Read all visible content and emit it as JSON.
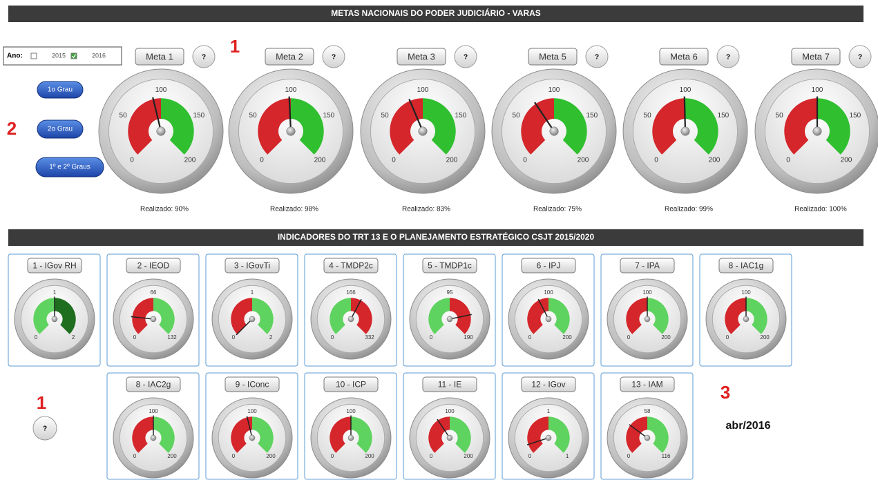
{
  "header": {
    "title": "METAS NACIONAIS DO PODER JUDICIÁRIO  - VARAS"
  },
  "section_2": {
    "title": "INDICADORES DO TRT 13 E O PLANEJAMENTO ESTRATÉGICO CSJT 2015/2020"
  },
  "year_filter": {
    "label": "Ano:",
    "options": [
      {
        "label": "2015",
        "checked": false
      },
      {
        "label": "2016",
        "checked": true
      }
    ]
  },
  "grade_buttons": [
    "1o Grau",
    "2o Grau",
    "1º e 2º Graus"
  ],
  "help_button": "?",
  "markers": {
    "one": "1",
    "two": "2",
    "three": "3"
  },
  "date": "abr/2016",
  "meta_gauges": [
    {
      "label": "Meta 1",
      "range": [
        0,
        200
      ],
      "ticks": [
        0,
        50,
        100,
        150,
        200
      ],
      "bands": [
        {
          "from": 0,
          "to": 100,
          "color": "#d4262b"
        },
        {
          "from": 100,
          "to": 200,
          "color": "#2fbf2f"
        }
      ],
      "realized": {
        "value": 90,
        "label": "Realizado: 90%"
      }
    },
    {
      "label": "Meta 2",
      "range": [
        0,
        200
      ],
      "ticks": [
        0,
        50,
        100,
        150,
        200
      ],
      "bands": [
        {
          "from": 0,
          "to": 100,
          "color": "#d4262b"
        },
        {
          "from": 100,
          "to": 200,
          "color": "#2fbf2f"
        }
      ],
      "realized": {
        "value": 98,
        "label": "Realizado: 98%"
      }
    },
    {
      "label": "Meta 3",
      "range": [
        0,
        200
      ],
      "ticks": [
        0,
        50,
        100,
        150,
        200
      ],
      "bands": [
        {
          "from": 0,
          "to": 100,
          "color": "#d4262b"
        },
        {
          "from": 100,
          "to": 200,
          "color": "#2fbf2f"
        }
      ],
      "realized": {
        "value": 83,
        "label": "Realizado: 83%"
      }
    },
    {
      "label": "Meta 5",
      "range": [
        0,
        200
      ],
      "ticks": [
        0,
        50,
        100,
        150,
        200
      ],
      "bands": [
        {
          "from": 0,
          "to": 100,
          "color": "#d4262b"
        },
        {
          "from": 100,
          "to": 200,
          "color": "#2fbf2f"
        }
      ],
      "realized": {
        "value": 75,
        "label": "Realizado: 75%"
      }
    },
    {
      "label": "Meta 6",
      "range": [
        0,
        200
      ],
      "ticks": [
        0,
        50,
        100,
        150,
        200
      ],
      "bands": [
        {
          "from": 0,
          "to": 100,
          "color": "#d4262b"
        },
        {
          "from": 100,
          "to": 200,
          "color": "#2fbf2f"
        }
      ],
      "realized": {
        "value": 99,
        "label": "Realizado: 99%"
      }
    },
    {
      "label": "Meta 7",
      "range": [
        0,
        200
      ],
      "ticks": [
        0,
        50,
        100,
        150,
        200
      ],
      "bands": [
        {
          "from": 0,
          "to": 100,
          "color": "#d4262b"
        },
        {
          "from": 100,
          "to": 200,
          "color": "#2fbf2f"
        }
      ],
      "realized": {
        "value": 100,
        "label": "Realizado: 100%"
      }
    }
  ],
  "indicators": [
    {
      "label": "1 - IGov RH",
      "range": [
        0,
        2
      ],
      "ticks": [
        0,
        1,
        2
      ],
      "bands": [
        {
          "from": 0,
          "to": 1,
          "color": "#5fd35f"
        },
        {
          "from": 1,
          "to": 2,
          "color": "#1f6e1f"
        }
      ],
      "value": 1
    },
    {
      "label": "2 - IEOD",
      "range": [
        0,
        132
      ],
      "ticks": [
        0,
        66,
        132
      ],
      "bands": [
        {
          "from": 0,
          "to": 66,
          "color": "#d4262b"
        },
        {
          "from": 66,
          "to": 132,
          "color": "#5fd35f"
        }
      ],
      "value": 25
    },
    {
      "label": "3 - IGovTi",
      "range": [
        0,
        2
      ],
      "ticks": [
        0,
        1,
        2
      ],
      "bands": [
        {
          "from": 0,
          "to": 1,
          "color": "#d4262b"
        },
        {
          "from": 1,
          "to": 2,
          "color": "#5fd35f"
        }
      ],
      "value": 0
    },
    {
      "label": "4 - TMDP2c",
      "range": [
        0,
        332
      ],
      "ticks": [
        0,
        166,
        332
      ],
      "bands": [
        {
          "from": 0,
          "to": 166,
          "color": "#5fd35f"
        },
        {
          "from": 166,
          "to": 332,
          "color": "#d4262b"
        }
      ],
      "value": 200
    },
    {
      "label": "5 - TMDP1c",
      "range": [
        0,
        190
      ],
      "ticks": [
        0,
        95,
        190
      ],
      "bands": [
        {
          "from": 0,
          "to": 95,
          "color": "#5fd35f"
        },
        {
          "from": 95,
          "to": 190,
          "color": "#d4262b"
        }
      ],
      "value": 150
    },
    {
      "label": "6 - IPJ",
      "range": [
        0,
        200
      ],
      "ticks": [
        0,
        100,
        200
      ],
      "bands": [
        {
          "from": 0,
          "to": 100,
          "color": "#d4262b"
        },
        {
          "from": 100,
          "to": 200,
          "color": "#5fd35f"
        }
      ],
      "value": 80
    },
    {
      "label": "7 - IPA",
      "range": [
        0,
        200
      ],
      "ticks": [
        0,
        100,
        200
      ],
      "bands": [
        {
          "from": 0,
          "to": 100,
          "color": "#d4262b"
        },
        {
          "from": 100,
          "to": 200,
          "color": "#5fd35f"
        }
      ],
      "value": 100
    },
    {
      "label": "8 - IAC1g",
      "range": [
        0,
        200
      ],
      "ticks": [
        0,
        100,
        200
      ],
      "bands": [
        {
          "from": 0,
          "to": 100,
          "color": "#d4262b"
        },
        {
          "from": 100,
          "to": 200,
          "color": "#5fd35f"
        }
      ],
      "value": 100
    },
    {
      "label": "8 - IAC2g",
      "range": [
        0,
        200
      ],
      "ticks": [
        0,
        100,
        200
      ],
      "bands": [
        {
          "from": 0,
          "to": 100,
          "color": "#d4262b"
        },
        {
          "from": 100,
          "to": 200,
          "color": "#5fd35f"
        }
      ],
      "value": 100
    },
    {
      "label": "9 - IConc",
      "range": [
        0,
        200
      ],
      "ticks": [
        0,
        100,
        200
      ],
      "bands": [
        {
          "from": 0,
          "to": 100,
          "color": "#d4262b"
        },
        {
          "from": 100,
          "to": 200,
          "color": "#5fd35f"
        }
      ],
      "value": 90
    },
    {
      "label": "10 - ICP",
      "range": [
        0,
        200
      ],
      "ticks": [
        0,
        100,
        200
      ],
      "bands": [
        {
          "from": 0,
          "to": 100,
          "color": "#d4262b"
        },
        {
          "from": 100,
          "to": 200,
          "color": "#5fd35f"
        }
      ],
      "value": 100
    },
    {
      "label": "11 - IE",
      "range": [
        0,
        200
      ],
      "ticks": [
        0,
        100,
        200
      ],
      "bands": [
        {
          "from": 0,
          "to": 100,
          "color": "#d4262b"
        },
        {
          "from": 100,
          "to": 200,
          "color": "#5fd35f"
        }
      ],
      "value": 75
    },
    {
      "label": "12 - IGov",
      "range": [
        0,
        1
      ],
      "ticks": [
        0,
        {
          "value": 0.5,
          "label": "1"
        },
        1
      ],
      "bands": [
        {
          "from": 0,
          "to": 0.5,
          "color": "#d4262b"
        },
        {
          "from": 0.5,
          "to": 1,
          "color": "#5fd35f"
        }
      ],
      "value": 0.1
    },
    {
      "label": "13 - IAM",
      "range": [
        0,
        116
      ],
      "ticks": [
        0,
        58,
        116
      ],
      "bands": [
        {
          "from": 0,
          "to": 58,
          "color": "#d4262b"
        },
        {
          "from": 58,
          "to": 116,
          "color": "#5fd35f"
        }
      ],
      "value": 35
    }
  ]
}
